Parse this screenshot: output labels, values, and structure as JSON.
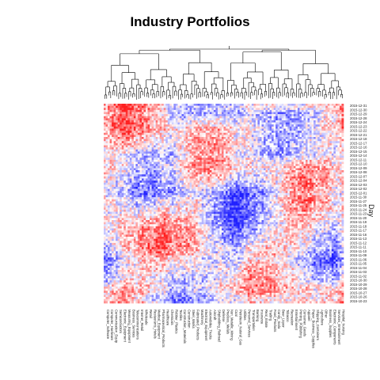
{
  "chart_data": {
    "type": "heatmap",
    "title": "Industry Portfolios",
    "xlabel": "",
    "ylabel": "Day",
    "n_columns": 120,
    "n_rows": 96,
    "color_scale": {
      "low": "#2020ff",
      "mid": "#ffffff",
      "high": "#ff2020"
    },
    "dendrogram": "column-top",
    "row_labels_visible": [
      "2015-12-31",
      "2015-12-30",
      "2015-12-29",
      "2015-12-28",
      "2015-12-24",
      "2015-12-23",
      "2015-12-22",
      "2015-12-21",
      "2015-12-18",
      "2015-12-17",
      "2015-12-16",
      "2015-12-15",
      "2015-12-14",
      "2015-12-11",
      "2015-12-10",
      "2015-12-09",
      "2015-12-08",
      "2015-12-07",
      "2015-12-04",
      "2015-12-03",
      "2015-12-02",
      "2015-12-01",
      "2015-11-30",
      "2015-11-27",
      "2015-11-25",
      "2015-11-24",
      "2015-11-23",
      "2015-11-20",
      "2015-11-19",
      "2015-11-18",
      "2015-11-17",
      "2015-11-16",
      "2015-11-13",
      "2015-11-12",
      "2015-11-11",
      "2015-11-10",
      "2015-11-09",
      "2015-11-06",
      "2015-11-05",
      "2015-11-04",
      "2015-11-03",
      "2015-11-02",
      "2015-10-30",
      "2015-10-29",
      "2015-10-28",
      "2015-10-27",
      "2015-10-26",
      "2015-10-23"
    ],
    "column_labels_visible": [
      "Computer_Software",
      "Computer_Hardware",
      "Communication_Equip",
      "Semiconductors",
      "Electronic_Equipment",
      "Measuring_Equipment",
      "Business_Services",
      "Telecommunications",
      "Internet_Retail",
      "Wholesale",
      "Retail",
      "Restaurants_Hotels",
      "Medical_Equipment",
      "Pharmaceutical_Products",
      "Healthcare",
      "Chemicals",
      "Rubber_Plastics",
      "Textiles",
      "Construction_Materials",
      "Construction",
      "Steel_Works",
      "Fabricated_Products",
      "Machinery",
      "Electrical_Equipment",
      "Automobiles_Trucks",
      "Aircraft",
      "Shipbuilding_Railroad",
      "Defense",
      "Precious_Metals",
      "Non_Metallic_Mining",
      "Coal",
      "Petroleum_Natural_Gas",
      "Utilities",
      "Personal_Services",
      "Transportation",
      "Banking",
      "Insurance",
      "Real_Estate",
      "Trading",
      "Food_Products",
      "Candy_Soda",
      "Beer_Liquor",
      "Tobacco",
      "Recreation",
      "Entertainment",
      "Printing_Publishing",
      "Consumer_Goods",
      "Apparel",
      "Paper_Business_Supplies",
      "Shipping_Containers",
      "Agriculture",
      "Other",
      "Business_Supplies",
      "Electronic_Components",
      "Services_Entertainment",
      "Hospital_Nursing"
    ]
  }
}
